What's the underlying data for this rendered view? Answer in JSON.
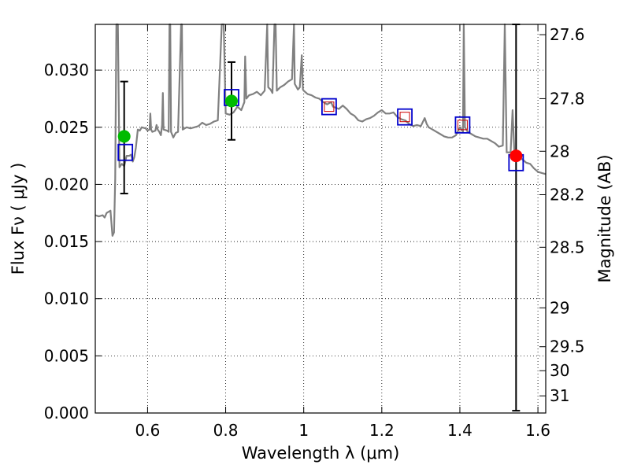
{
  "chart_data": {
    "type": "scatter",
    "xlabel": "Wavelength  λ (μm)",
    "ylabel": "Flux  Fν  ( μJy )",
    "ylabel_right": "Magnitude (AB)",
    "xlim": [
      0.466,
      1.62
    ],
    "ylim": [
      0.0,
      0.034
    ],
    "grid": true,
    "x_ticks": [
      0.6,
      0.8,
      1.0,
      1.2,
      1.4,
      1.6
    ],
    "x_tick_labels": [
      "0.6",
      "0.8",
      "1",
      "1.2",
      "1.4",
      "1.6"
    ],
    "y_ticks": [
      0.0,
      0.005,
      0.01,
      0.015,
      0.02,
      0.025,
      0.03
    ],
    "y_tick_labels": [
      "0.000",
      "0.005",
      "0.010",
      "0.015",
      "0.020",
      "0.025",
      "0.030"
    ],
    "mag_ticks": [
      {
        "flux": 0.0331,
        "label": "27.6"
      },
      {
        "flux": 0.0275,
        "label": "27.8"
      },
      {
        "flux": 0.0229,
        "label": "28"
      },
      {
        "flux": 0.0191,
        "label": "28.2"
      },
      {
        "flux": 0.0145,
        "label": "28.5"
      },
      {
        "flux": 0.0092,
        "label": "29"
      },
      {
        "flux": 0.0058,
        "label": "29.5"
      },
      {
        "flux": 0.0037,
        "label": "30"
      },
      {
        "flux": 0.0015,
        "label": "31"
      }
    ],
    "model_spectrum": {
      "name": "model SED",
      "color": "#808080",
      "points": [
        [
          0.466,
          0.0173
        ],
        [
          0.475,
          0.0172
        ],
        [
          0.485,
          0.0173
        ],
        [
          0.49,
          0.0171
        ],
        [
          0.495,
          0.0175
        ],
        [
          0.505,
          0.0177
        ],
        [
          0.51,
          0.0155
        ],
        [
          0.514,
          0.0158
        ],
        [
          0.517,
          0.0205
        ],
        [
          0.52,
          0.034
        ],
        [
          0.524,
          0.034
        ],
        [
          0.528,
          0.0215
        ],
        [
          0.534,
          0.0218
        ],
        [
          0.54,
          0.0216
        ],
        [
          0.546,
          0.0225
        ],
        [
          0.553,
          0.0225
        ],
        [
          0.558,
          0.0226
        ],
        [
          0.562,
          0.022
        ],
        [
          0.566,
          0.0224
        ],
        [
          0.57,
          0.0232
        ],
        [
          0.575,
          0.0248
        ],
        [
          0.58,
          0.0247
        ],
        [
          0.585,
          0.025
        ],
        [
          0.595,
          0.0249
        ],
        [
          0.6,
          0.0247
        ],
        [
          0.605,
          0.0248
        ],
        [
          0.607,
          0.0262
        ],
        [
          0.609,
          0.0248
        ],
        [
          0.612,
          0.0246
        ],
        [
          0.62,
          0.0247
        ],
        [
          0.623,
          0.0252
        ],
        [
          0.626,
          0.0248
        ],
        [
          0.63,
          0.0246
        ],
        [
          0.634,
          0.0243
        ],
        [
          0.637,
          0.0252
        ],
        [
          0.639,
          0.028
        ],
        [
          0.641,
          0.0248
        ],
        [
          0.65,
          0.0247
        ],
        [
          0.654,
          0.0246
        ],
        [
          0.656,
          0.034
        ],
        [
          0.658,
          0.034
        ],
        [
          0.66,
          0.0246
        ],
        [
          0.666,
          0.0241
        ],
        [
          0.672,
          0.0245
        ],
        [
          0.678,
          0.0246
        ],
        [
          0.686,
          0.034
        ],
        [
          0.688,
          0.034
        ],
        [
          0.69,
          0.0248
        ],
        [
          0.7,
          0.025
        ],
        [
          0.71,
          0.0249
        ],
        [
          0.72,
          0.025
        ],
        [
          0.73,
          0.0251
        ],
        [
          0.74,
          0.0254
        ],
        [
          0.75,
          0.0252
        ],
        [
          0.76,
          0.0253
        ],
        [
          0.77,
          0.0255
        ],
        [
          0.78,
          0.0256
        ],
        [
          0.79,
          0.034
        ],
        [
          0.795,
          0.034
        ],
        [
          0.8,
          0.0262
        ],
        [
          0.81,
          0.0261
        ],
        [
          0.82,
          0.0263
        ],
        [
          0.83,
          0.0268
        ],
        [
          0.84,
          0.0265
        ],
        [
          0.848,
          0.0272
        ],
        [
          0.85,
          0.0312
        ],
        [
          0.853,
          0.0275
        ],
        [
          0.86,
          0.0278
        ],
        [
          0.87,
          0.0279
        ],
        [
          0.88,
          0.0281
        ],
        [
          0.89,
          0.0278
        ],
        [
          0.9,
          0.0282
        ],
        [
          0.9065,
          0.034
        ],
        [
          0.909,
          0.0285
        ],
        [
          0.915,
          0.0283
        ],
        [
          0.92,
          0.028
        ],
        [
          0.925,
          0.034
        ],
        [
          0.928,
          0.034
        ],
        [
          0.931,
          0.0282
        ],
        [
          0.94,
          0.0285
        ],
        [
          0.95,
          0.0287
        ],
        [
          0.96,
          0.029
        ],
        [
          0.97,
          0.0292
        ],
        [
          0.975,
          0.034
        ],
        [
          0.977,
          0.0288
        ],
        [
          0.985,
          0.0283
        ],
        [
          0.99,
          0.0285
        ],
        [
          0.995,
          0.0313
        ],
        [
          0.998,
          0.0283
        ],
        [
          1.0,
          0.0282
        ],
        [
          1.01,
          0.0279
        ],
        [
          1.02,
          0.0278
        ],
        [
          1.03,
          0.0276
        ],
        [
          1.04,
          0.0275
        ],
        [
          1.05,
          0.0272
        ],
        [
          1.06,
          0.027
        ],
        [
          1.07,
          0.0272
        ],
        [
          1.075,
          0.0268
        ],
        [
          1.09,
          0.0266
        ],
        [
          1.1,
          0.0269
        ],
        [
          1.11,
          0.0266
        ],
        [
          1.12,
          0.0262
        ],
        [
          1.13,
          0.026
        ],
        [
          1.14,
          0.0256
        ],
        [
          1.15,
          0.0255
        ],
        [
          1.16,
          0.0257
        ],
        [
          1.17,
          0.0258
        ],
        [
          1.18,
          0.026
        ],
        [
          1.19,
          0.0263
        ],
        [
          1.2,
          0.0265
        ],
        [
          1.21,
          0.0262
        ],
        [
          1.22,
          0.0262
        ],
        [
          1.23,
          0.0263
        ],
        [
          1.24,
          0.0259
        ],
        [
          1.25,
          0.0257
        ],
        [
          1.26,
          0.0256
        ],
        [
          1.27,
          0.0253
        ],
        [
          1.28,
          0.0251
        ],
        [
          1.29,
          0.0252
        ],
        [
          1.3,
          0.0251
        ],
        [
          1.31,
          0.0258
        ],
        [
          1.315,
          0.0253
        ],
        [
          1.32,
          0.025
        ],
        [
          1.33,
          0.0248
        ],
        [
          1.34,
          0.0246
        ],
        [
          1.35,
          0.0244
        ],
        [
          1.36,
          0.0242
        ],
        [
          1.37,
          0.0241
        ],
        [
          1.38,
          0.0241
        ],
        [
          1.39,
          0.0243
        ],
        [
          1.4,
          0.025
        ],
        [
          1.408,
          0.0246
        ],
        [
          1.41,
          0.034
        ],
        [
          1.413,
          0.025
        ],
        [
          1.42,
          0.0246
        ],
        [
          1.43,
          0.0244
        ],
        [
          1.44,
          0.0242
        ],
        [
          1.45,
          0.0241
        ],
        [
          1.46,
          0.024
        ],
        [
          1.47,
          0.024
        ],
        [
          1.48,
          0.0238
        ],
        [
          1.49,
          0.0236
        ],
        [
          1.5,
          0.0233
        ],
        [
          1.51,
          0.0234
        ],
        [
          1.515,
          0.034
        ],
        [
          1.52,
          0.0228
        ],
        [
          1.53,
          0.0228
        ],
        [
          1.535,
          0.0265
        ],
        [
          1.54,
          0.0226
        ],
        [
          1.55,
          0.0223
        ],
        [
          1.56,
          0.0222
        ],
        [
          1.57,
          0.0219
        ],
        [
          1.58,
          0.0218
        ],
        [
          1.59,
          0.0214
        ],
        [
          1.6,
          0.0211
        ],
        [
          1.61,
          0.021
        ],
        [
          1.62,
          0.0209
        ]
      ]
    },
    "model_bandpass": {
      "name": "model photometry",
      "marker": "open-square",
      "color": "#0000cc",
      "x": [
        0.543,
        0.815,
        1.065,
        1.259,
        1.407,
        1.544
      ],
      "y": [
        0.0228,
        0.0276,
        0.0268,
        0.0259,
        0.0252,
        0.0219
      ]
    },
    "observed": [
      {
        "name": "detection",
        "color": "#00bb00",
        "x": 0.54,
        "y": 0.0242,
        "yerr_low": 0.0192,
        "yerr_high": 0.029
      },
      {
        "name": "detection",
        "color": "#00bb00",
        "x": 0.815,
        "y": 0.0273,
        "yerr_low": 0.0239,
        "yerr_high": 0.0307
      },
      {
        "name": "upper limit",
        "color": "#ff0000",
        "x": 1.544,
        "y": 0.0225,
        "yerr_low": 0.0002,
        "yerr_high": 0.034
      }
    ],
    "inner_marks": {
      "name": "filter response",
      "color": "#cc0000",
      "x": [
        1.065,
        1.259,
        1.407
      ],
      "y": [
        0.0268,
        0.0259,
        0.0252
      ]
    }
  }
}
